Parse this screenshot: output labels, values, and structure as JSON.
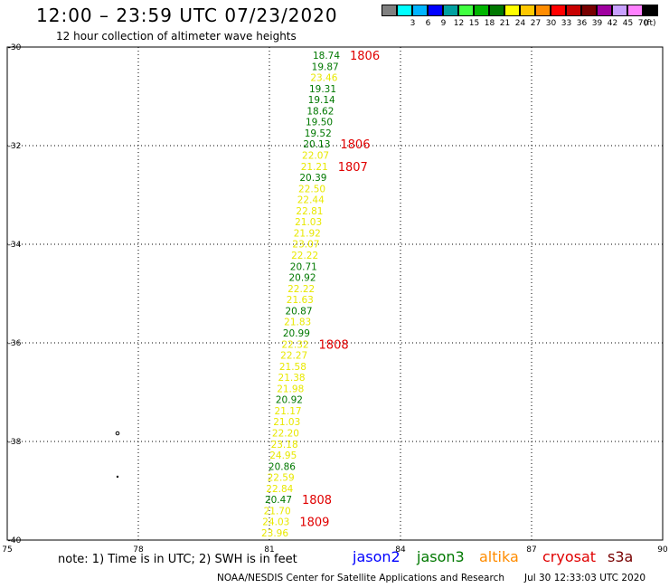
{
  "header": {
    "title": "12:00 – 23:59 UTC 07/23/2020",
    "subtitle": "12 hour collection of altimeter wave heights"
  },
  "legend": {
    "unit": "(ft)",
    "swatches": [
      {
        "label": "",
        "color": "#808080"
      },
      {
        "label": "3",
        "color": "#00ffff"
      },
      {
        "label": "6",
        "color": "#00b4ff"
      },
      {
        "label": "9",
        "color": "#0000ff"
      },
      {
        "label": "12",
        "color": "#00a0a0"
      },
      {
        "label": "15",
        "color": "#40ff40"
      },
      {
        "label": "18",
        "color": "#00b400"
      },
      {
        "label": "21",
        "color": "#007800"
      },
      {
        "label": "24",
        "color": "#ffff00"
      },
      {
        "label": "27",
        "color": "#ffc800"
      },
      {
        "label": "30",
        "color": "#ff8c00"
      },
      {
        "label": "33",
        "color": "#ff0000"
      },
      {
        "label": "36",
        "color": "#c80000"
      },
      {
        "label": "39",
        "color": "#780000"
      },
      {
        "label": "42",
        "color": "#a000a0"
      },
      {
        "label": "45",
        "color": "#c8a0ff"
      },
      {
        "label": "70",
        "color": "#ff80ff"
      },
      {
        "label": "",
        "color": "#000000"
      }
    ]
  },
  "map": {
    "lon_ticks": [
      "75",
      "78",
      "81",
      "84",
      "87",
      "90"
    ],
    "lat_ticks": [
      "-30",
      "-32",
      "-34",
      "-36",
      "-38",
      "-40"
    ],
    "lon_range": [
      75,
      90
    ],
    "lat_range": [
      -30,
      -40
    ]
  },
  "observations": [
    {
      "value": "18.74",
      "color": "#007800"
    },
    {
      "value": "19.87",
      "color": "#007800"
    },
    {
      "value": "23.46",
      "color": "#e8e800"
    },
    {
      "value": "19.31",
      "color": "#007800"
    },
    {
      "value": "19.14",
      "color": "#007800"
    },
    {
      "value": "18.62",
      "color": "#007800"
    },
    {
      "value": "19.50",
      "color": "#007800"
    },
    {
      "value": "19.52",
      "color": "#007800"
    },
    {
      "value": "20.13",
      "color": "#007800"
    },
    {
      "value": "22.07",
      "color": "#e8e800"
    },
    {
      "value": "21.21",
      "color": "#e8e800"
    },
    {
      "value": "20.39",
      "color": "#007800"
    },
    {
      "value": "22.50",
      "color": "#e8e800"
    },
    {
      "value": "22.44",
      "color": "#e8e800"
    },
    {
      "value": "22.81",
      "color": "#e8e800"
    },
    {
      "value": "21.03",
      "color": "#e8e800"
    },
    {
      "value": "21.92",
      "color": "#e8e800"
    },
    {
      "value": "23.07",
      "color": "#e8e800"
    },
    {
      "value": "22.22",
      "color": "#e8e800"
    },
    {
      "value": "20.71",
      "color": "#007800"
    },
    {
      "value": "20.92",
      "color": "#007800"
    },
    {
      "value": "22.22",
      "color": "#e8e800"
    },
    {
      "value": "21.63",
      "color": "#e8e800"
    },
    {
      "value": "20.87",
      "color": "#007800"
    },
    {
      "value": "21.83",
      "color": "#e8e800"
    },
    {
      "value": "20.99",
      "color": "#007800"
    },
    {
      "value": "22.32",
      "color": "#e8e800"
    },
    {
      "value": "22.27",
      "color": "#e8e800"
    },
    {
      "value": "21.58",
      "color": "#e8e800"
    },
    {
      "value": "21.38",
      "color": "#e8e800"
    },
    {
      "value": "21.98",
      "color": "#e8e800"
    },
    {
      "value": "20.92",
      "color": "#007800"
    },
    {
      "value": "21.17",
      "color": "#e8e800"
    },
    {
      "value": "21.03",
      "color": "#e8e800"
    },
    {
      "value": "22.20",
      "color": "#e8e800"
    },
    {
      "value": "23.18",
      "color": "#e8e800"
    },
    {
      "value": "24.95",
      "color": "#e8e800"
    },
    {
      "value": "20.86",
      "color": "#007800"
    },
    {
      "value": "22.59",
      "color": "#e8e800"
    },
    {
      "value": "22.84",
      "color": "#e8e800"
    },
    {
      "value": "20.47",
      "color": "#007800"
    },
    {
      "value": "21.70",
      "color": "#e8e800"
    },
    {
      "value": "24.03",
      "color": "#e8e800"
    },
    {
      "value": "23.96",
      "color": "#e8e800"
    }
  ],
  "time_tags": [
    {
      "label": "1806",
      "row": 0
    },
    {
      "label": "1806",
      "row": 8
    },
    {
      "label": "1807",
      "row": 10
    },
    {
      "label": "1808",
      "row": 26
    },
    {
      "label": "1808",
      "row": 40
    },
    {
      "label": "1809",
      "row": 42
    }
  ],
  "footer": {
    "note": "note:  1) Time is in UTC;  2) SWH is in feet",
    "satellites": [
      {
        "name": "jason2",
        "color": "#0000ff"
      },
      {
        "name": "jason3",
        "color": "#007800"
      },
      {
        "name": "altika",
        "color": "#ff8c00"
      },
      {
        "name": "cryosat",
        "color": "#e00000"
      },
      {
        "name": "s3a",
        "color": "#780000"
      }
    ],
    "credit": "NOAA/NESDIS Center for Satellite Applications and Research",
    "timestamp": "Jul 30 12:33:03 UTC 2020"
  }
}
